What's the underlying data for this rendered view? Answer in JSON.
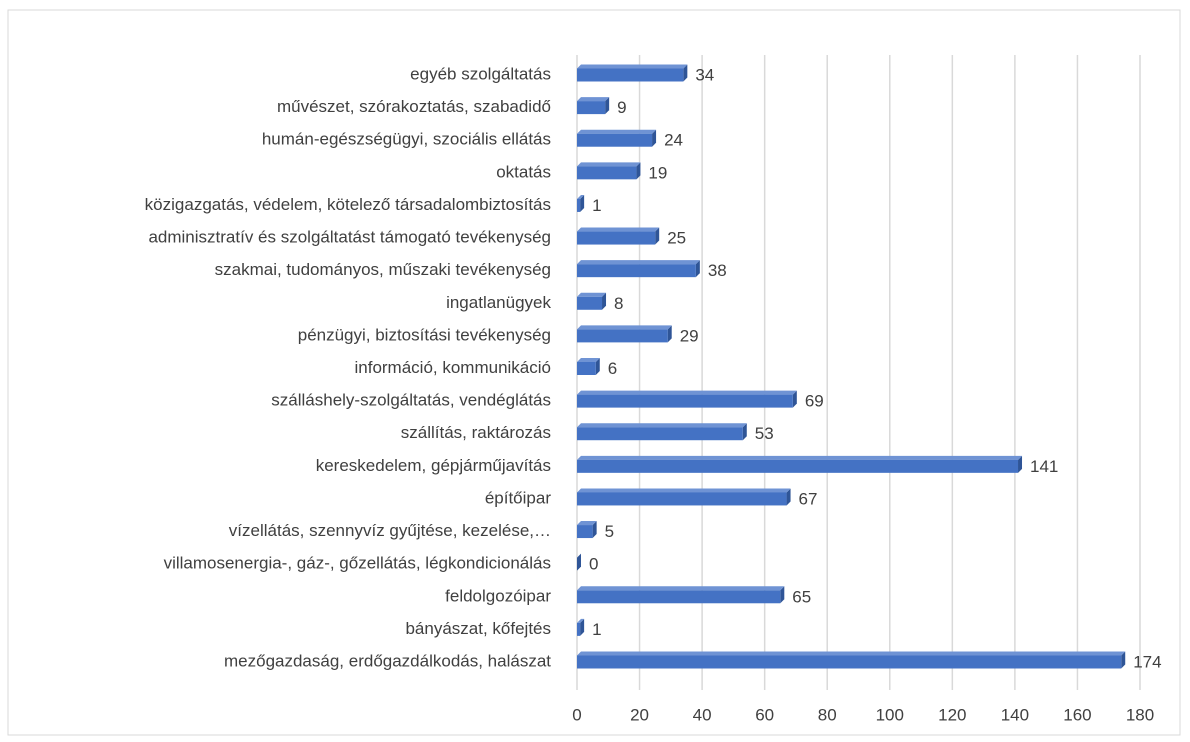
{
  "chart_data": {
    "type": "bar",
    "orientation": "horizontal",
    "categories": [
      "mezőgazdaság, erdőgazdálkodás, halászat",
      "bányászat, kőfejtés",
      "feldolgozóipar",
      "villamosenergia-, gáz-, gőzellátás, légkondicionálás",
      "vízellátás, szennyvíz gyűjtése, kezelése,…",
      "építőipar",
      "kereskedelem, gépjárműjavítás",
      "szállítás, raktározás",
      "szálláshely-szolgáltatás, vendéglátás",
      "információ, kommunikáció",
      "pénzügyi, biztosítási tevékenység",
      "ingatlanügyek",
      "szakmai, tudományos, műszaki tevékenység",
      "adminisztratív és szolgáltatást támogató tevékenység",
      "közigazgatás, védelem, kötelező társadalombiztosítás",
      "oktatás",
      "humán-egészségügyi, szociális ellátás",
      "művészet, szórakoztatás, szabadidő",
      "egyéb szolgáltatás"
    ],
    "values": [
      174,
      1,
      65,
      0,
      5,
      67,
      141,
      53,
      69,
      6,
      29,
      8,
      38,
      25,
      1,
      19,
      24,
      9,
      34
    ],
    "color": "#4472c4",
    "xlim": [
      0,
      180
    ],
    "xticks": [
      0,
      20,
      40,
      60,
      80,
      100,
      120,
      140,
      160,
      180
    ],
    "grid": true
  }
}
